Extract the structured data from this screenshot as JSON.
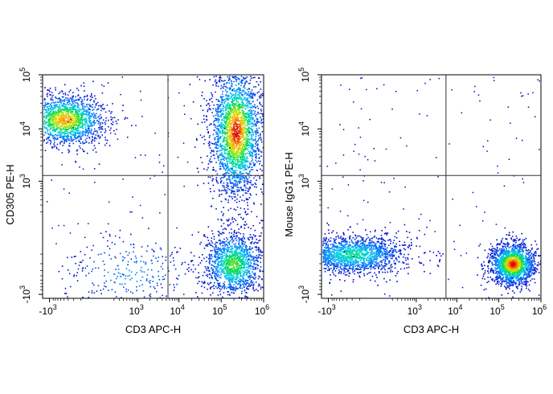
{
  "chart_data": [
    {
      "type": "scatter",
      "style": "flow-cytometry pseudocolor density plot",
      "xlabel": "CD3 APC-H",
      "ylabel": "CD305 PE-H",
      "x_scale": "biexponential",
      "y_scale": "biexponential",
      "xlim": [
        -1500,
        1000000
      ],
      "ylim": [
        -1200,
        100000
      ],
      "x_ticks": [
        {
          "value": -1000,
          "base": "-10",
          "exp": "3"
        },
        {
          "value": 1000,
          "base": "10",
          "exp": "3"
        },
        {
          "value": 10000,
          "base": "10",
          "exp": "4"
        },
        {
          "value": 100000,
          "base": "10",
          "exp": "5"
        },
        {
          "value": 1000000,
          "base": "10",
          "exp": "6"
        }
      ],
      "y_ticks": [
        {
          "value": -1000,
          "base": "-10",
          "exp": "3"
        },
        {
          "value": 1000,
          "base": "10",
          "exp": "3"
        },
        {
          "value": 10000,
          "base": "10",
          "exp": "4"
        },
        {
          "value": 100000,
          "base": "10",
          "exp": "5"
        }
      ],
      "quadrant_gates": {
        "x": 5500,
        "y": 1300
      },
      "populations": [
        {
          "center": [
            -400,
            15000
          ],
          "spread": "wide",
          "peak_density": "orange"
        },
        {
          "center": [
            220000,
            9000
          ],
          "spread": "tall",
          "peak_density": "red"
        },
        {
          "center": [
            190000,
            -200
          ],
          "spread": "medium",
          "peak_density": "green"
        },
        {
          "center": [
            600,
            -300
          ],
          "spread": "sparse",
          "peak_density": "blue"
        }
      ],
      "grid": false,
      "legend": "none"
    },
    {
      "type": "scatter",
      "style": "flow-cytometry pseudocolor density plot",
      "xlabel": "CD3 APC-H",
      "ylabel": "Mouse IgG1 PE-H",
      "x_scale": "biexponential",
      "y_scale": "biexponential",
      "xlim": [
        -1500,
        1000000
      ],
      "ylim": [
        -1200,
        100000
      ],
      "x_ticks": [
        {
          "value": -1000,
          "base": "-10",
          "exp": "3"
        },
        {
          "value": 1000,
          "base": "10",
          "exp": "3"
        },
        {
          "value": 10000,
          "base": "10",
          "exp": "4"
        },
        {
          "value": 100000,
          "base": "10",
          "exp": "5"
        },
        {
          "value": 1000000,
          "base": "10",
          "exp": "6"
        }
      ],
      "y_ticks": [
        {
          "value": -1000,
          "base": "-10",
          "exp": "3"
        },
        {
          "value": 1000,
          "base": "10",
          "exp": "3"
        },
        {
          "value": 10000,
          "base": "10",
          "exp": "4"
        },
        {
          "value": 100000,
          "base": "10",
          "exp": "5"
        }
      ],
      "quadrant_gates": {
        "x": 5500,
        "y": 1300
      },
      "populations": [
        {
          "center": [
            -200,
            -100
          ],
          "spread": "wide-horizontal",
          "peak_density": "cyan"
        },
        {
          "center": [
            210000,
            -200
          ],
          "spread": "compact",
          "peak_density": "red"
        }
      ],
      "grid": false,
      "legend": "none"
    }
  ],
  "colors": {
    "low_density": "#0000cc",
    "mid_density": "#00c8ff",
    "high_density": "#00e040",
    "very_high_density": "#ffdd00",
    "peak_density": "#e00000",
    "gate_lines": "#333333",
    "frame": "#000000"
  }
}
